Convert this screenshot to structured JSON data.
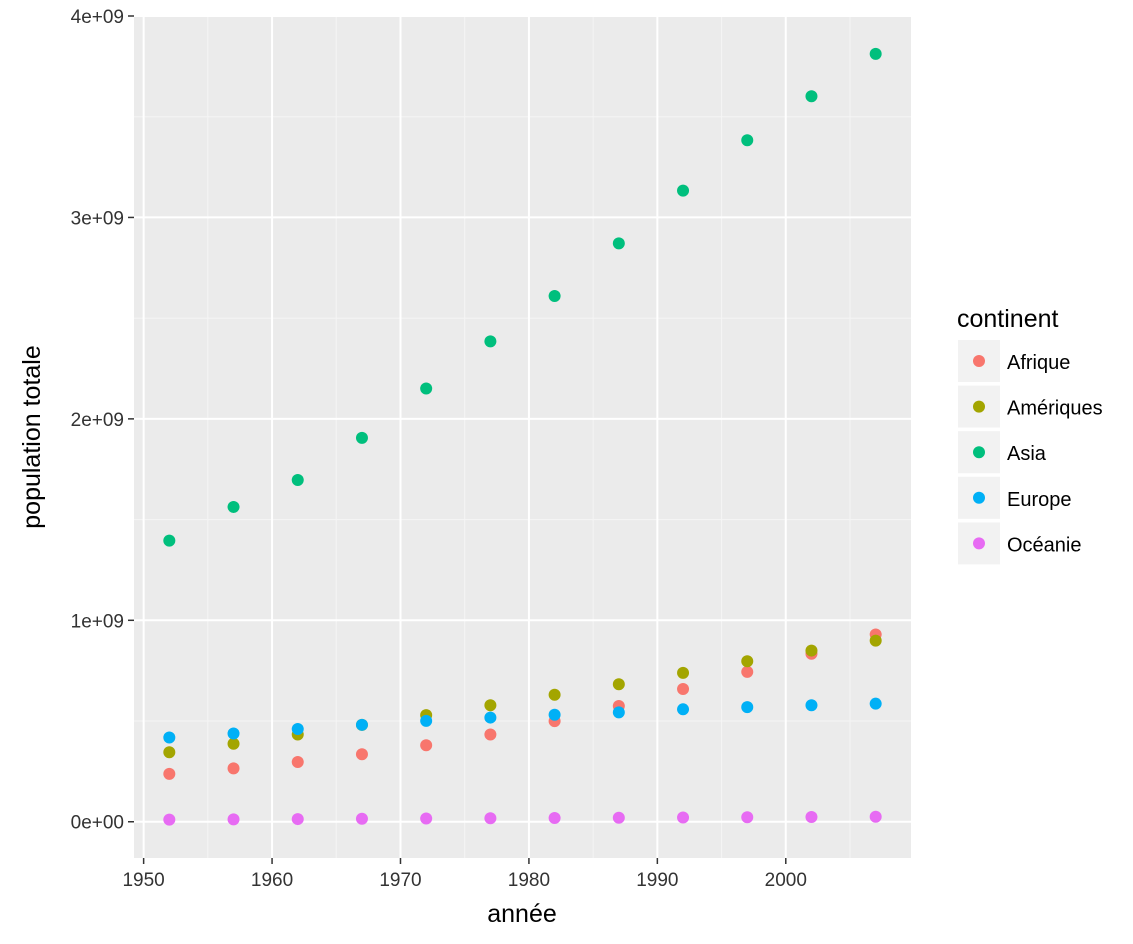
{
  "chart_data": {
    "type": "scatter",
    "title": "",
    "xlabel": "année",
    "ylabel": "population totale",
    "xlim": [
      1949.25,
      2009.75
    ],
    "ylim": [
      -180000000,
      4000000000
    ],
    "x_ticks": [
      1950,
      1960,
      1970,
      1980,
      1990,
      2000
    ],
    "y_ticks": [
      0,
      1000000000,
      2000000000,
      3000000000,
      4000000000
    ],
    "x_tick_labels": [
      "1950",
      "1960",
      "1970",
      "1980",
      "1990",
      "2000"
    ],
    "y_tick_labels": [
      "0e+00",
      "1e+09",
      "2e+09",
      "3e+09",
      "4e+09"
    ],
    "grid": true,
    "legend": {
      "title": "continent",
      "position": "right"
    },
    "x": [
      1952,
      1957,
      1962,
      1967,
      1972,
      1977,
      1982,
      1987,
      1992,
      1997,
      2002,
      2007
    ],
    "series": [
      {
        "name": "Afrique",
        "color": "#F8766D",
        "values": [
          237640501,
          264837738,
          296516865,
          335289489,
          379879541,
          433061021,
          499348587,
          574834110,
          659081517,
          743832984,
          833723916,
          929539692
        ]
      },
      {
        "name": "Amériques",
        "color": "#A3A500",
        "values": [
          345152446,
          386953916,
          433270254,
          480746623,
          529384210,
          578067699,
          630290920,
          682753971,
          739274104,
          796900410,
          849772762,
          898871184
        ]
      },
      {
        "name": "Asia",
        "color": "#00BF7D",
        "values": [
          1395357352,
          1562780599,
          1696357182,
          1905662900,
          2150972248,
          2384513556,
          2610135582,
          2871220762,
          3133292191,
          3383285500,
          3601802203,
          3811953827
        ]
      },
      {
        "name": "Europe",
        "color": "#00B0F6",
        "values": [
          418120846,
          437890351,
          460355155,
          481178958,
          500635059,
          517164531,
          531266901,
          543094160,
          558142797,
          568944148,
          578223869,
          586098529
        ]
      },
      {
        "name": "Océanie",
        "color": "#E76BF3",
        "values": [
          10686006,
          11941976,
          13283518,
          14600414,
          16106359,
          17239000,
          18394850,
          19574415,
          20919651,
          22241430,
          23454829,
          24549947
        ]
      }
    ]
  }
}
